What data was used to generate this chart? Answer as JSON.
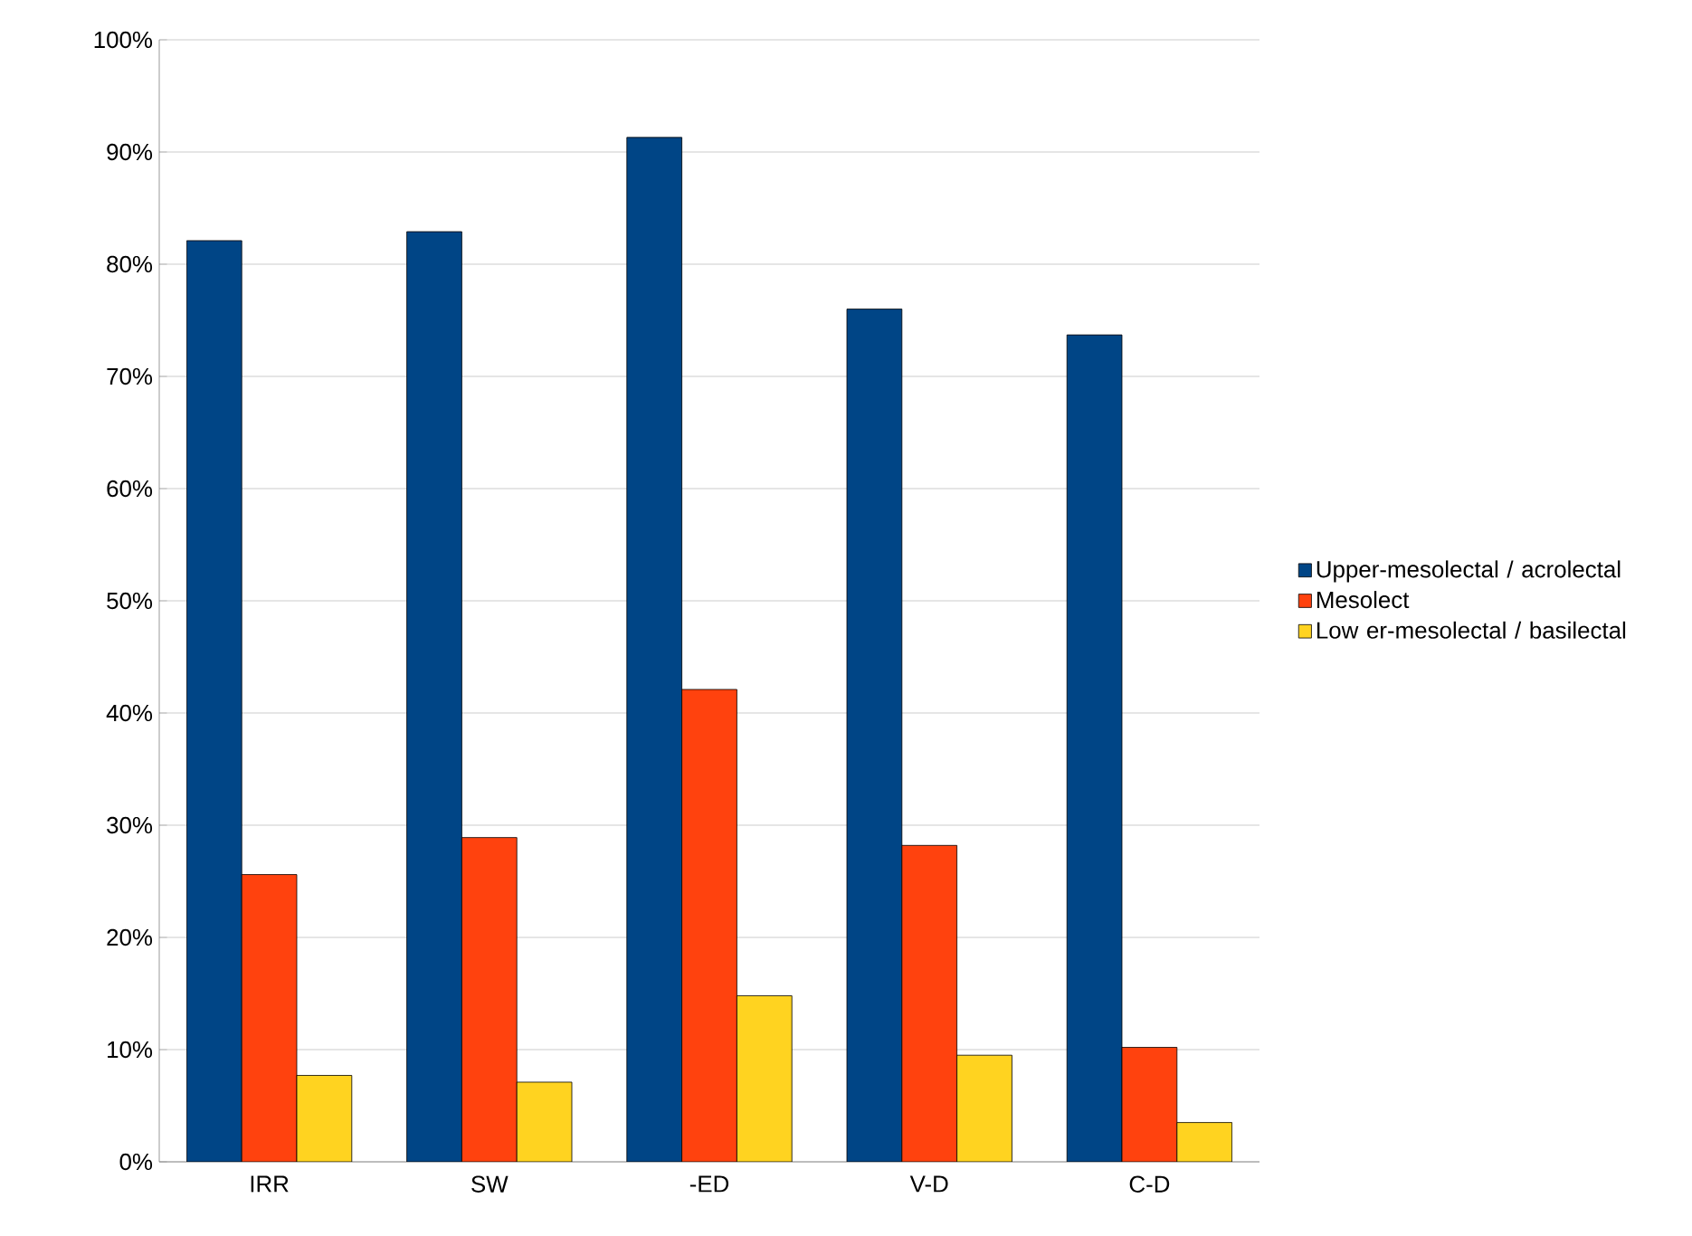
{
  "chart_data": {
    "type": "bar",
    "categories": [
      "IRR",
      "SW",
      "-ED",
      "V-D",
      "C-D"
    ],
    "series": [
      {
        "name": "Upper-mesolectal / acrolectal",
        "color": "#004586",
        "values": [
          82.1,
          82.9,
          91.3,
          76.0,
          73.7
        ]
      },
      {
        "name": "Mesolect",
        "color": "#ff420e",
        "values": [
          25.6,
          28.9,
          42.1,
          28.2,
          10.2
        ]
      },
      {
        "name": "Low er-mesolectal / basilectal",
        "color": "#ffd320",
        "values": [
          7.7,
          7.1,
          14.8,
          9.5,
          3.5
        ]
      }
    ],
    "ylim": [
      0,
      100
    ],
    "yticks": [
      {
        "value": 0,
        "label": "0%"
      },
      {
        "value": 10,
        "label": "10%"
      },
      {
        "value": 20,
        "label": "20%"
      },
      {
        "value": 30,
        "label": "30%"
      },
      {
        "value": 40,
        "label": "40%"
      },
      {
        "value": 50,
        "label": "50%"
      },
      {
        "value": 60,
        "label": "60%"
      },
      {
        "value": 70,
        "label": "70%"
      },
      {
        "value": 80,
        "label": "80%"
      },
      {
        "value": 90,
        "label": "90%"
      },
      {
        "value": 100,
        "label": "100%"
      }
    ],
    "grid": "y",
    "legend": "right"
  }
}
